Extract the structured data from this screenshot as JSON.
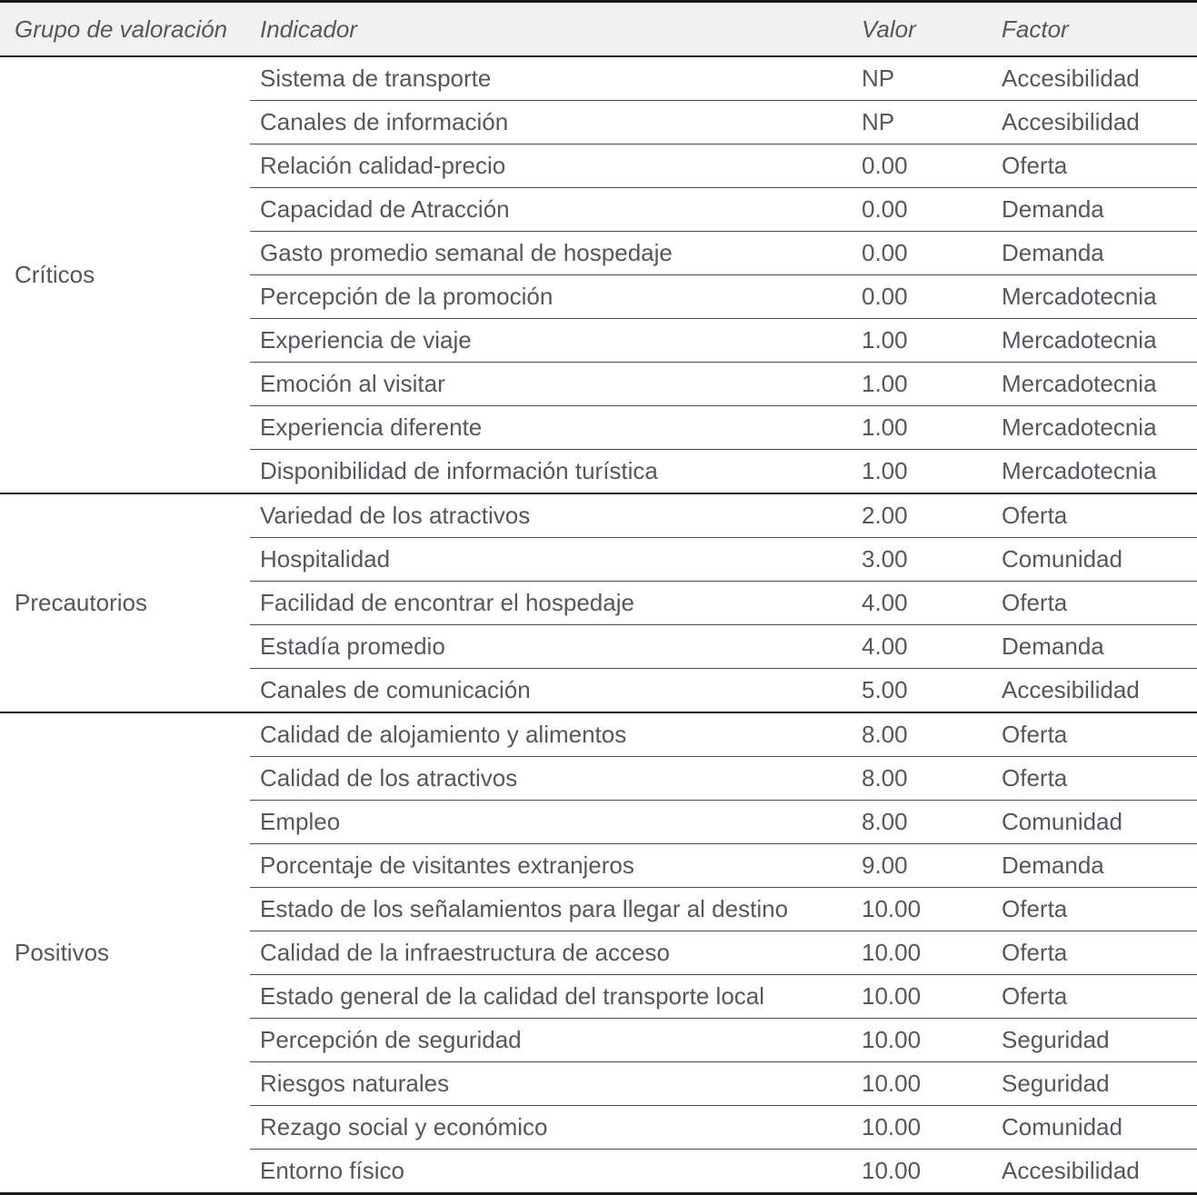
{
  "table": {
    "columns": [
      "Grupo de valoración",
      "Indicador",
      "Valor",
      "Factor"
    ],
    "groups": [
      {
        "name": "Críticos",
        "rows": [
          {
            "indicator": "Sistema de transporte",
            "valor": "NP",
            "factor": "Accesibilidad"
          },
          {
            "indicator": "Canales de información",
            "valor": "NP",
            "factor": "Accesibilidad"
          },
          {
            "indicator": "Relación calidad-precio",
            "valor": "0.00",
            "factor": "Oferta"
          },
          {
            "indicator": "Capacidad de Atracción",
            "valor": "0.00",
            "factor": "Demanda"
          },
          {
            "indicator": "Gasto promedio semanal de hospedaje",
            "valor": "0.00",
            "factor": "Demanda"
          },
          {
            "indicator": "Percepción de la promoción",
            "valor": "0.00",
            "factor": "Mercadotecnia"
          },
          {
            "indicator": "Experiencia de viaje",
            "valor": "1.00",
            "factor": "Mercadotecnia"
          },
          {
            "indicator": "Emoción al visitar",
            "valor": "1.00",
            "factor": "Mercadotecnia"
          },
          {
            "indicator": "Experiencia diferente",
            "valor": "1.00",
            "factor": "Mercadotecnia"
          },
          {
            "indicator": "Disponibilidad de información turística",
            "valor": "1.00",
            "factor": "Mercadotecnia"
          }
        ]
      },
      {
        "name": "Precautorios",
        "rows": [
          {
            "indicator": "Variedad de los atractivos",
            "valor": "2.00",
            "factor": "Oferta"
          },
          {
            "indicator": "Hospitalidad",
            "valor": "3.00",
            "factor": "Comunidad"
          },
          {
            "indicator": "Facilidad de encontrar el hospedaje",
            "valor": "4.00",
            "factor": "Oferta"
          },
          {
            "indicator": "Estadía promedio",
            "valor": "4.00",
            "factor": "Demanda"
          },
          {
            "indicator": "Canales de comunicación",
            "valor": "5.00",
            "factor": "Accesibilidad"
          }
        ]
      },
      {
        "name": "Positivos",
        "rows": [
          {
            "indicator": "Calidad de alojamiento y alimentos",
            "valor": "8.00",
            "factor": "Oferta"
          },
          {
            "indicator": "Calidad de los atractivos",
            "valor": "8.00",
            "factor": "Oferta"
          },
          {
            "indicator": "Empleo",
            "valor": "8.00",
            "factor": "Comunidad"
          },
          {
            "indicator": "Porcentaje de visitantes extranjeros",
            "valor": "9.00",
            "factor": "Demanda"
          },
          {
            "indicator": "Estado de los señalamientos para llegar al destino",
            "valor": "10.00",
            "factor": "Oferta"
          },
          {
            "indicator": "Calidad de la infraestructura de acceso",
            "valor": "10.00",
            "factor": "Oferta"
          },
          {
            "indicator": "Estado general de la calidad del transporte local",
            "valor": "10.00",
            "factor": "Oferta"
          },
          {
            "indicator": "Percepción de seguridad",
            "valor": "10.00",
            "factor": "Seguridad"
          },
          {
            "indicator": "Riesgos naturales",
            "valor": "10.00",
            "factor": "Seguridad"
          },
          {
            "indicator": "Rezago social y económico",
            "valor": "10.00",
            "factor": "Comunidad"
          },
          {
            "indicator": "Entorno físico",
            "valor": "10.00",
            "factor": "Accesibilidad"
          }
        ]
      }
    ],
    "colors": {
      "text": "#55575b",
      "header_bg": "#f0f1f1",
      "rule_thick": "#1b1b1b",
      "rule_thin": "#4c4d4f"
    }
  }
}
